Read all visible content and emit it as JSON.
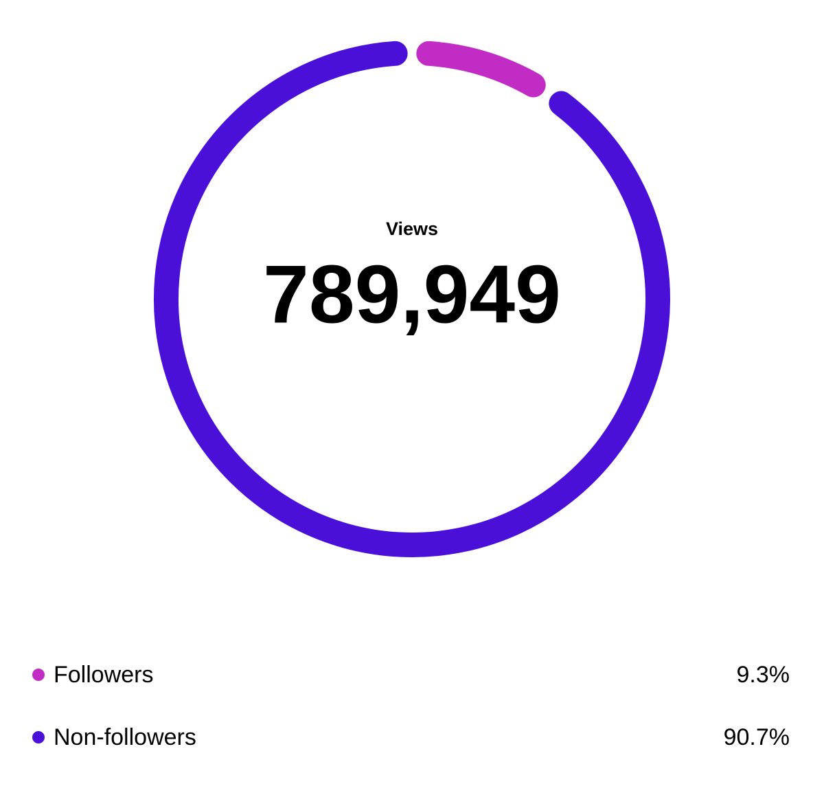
{
  "chart_data": {
    "type": "donut",
    "center_title": "Views",
    "center_value": "789,949",
    "categories": [
      "Followers",
      "Non-followers"
    ],
    "values": [
      9.3,
      90.7
    ],
    "value_labels": [
      "9.3%",
      "90.7%"
    ],
    "colors": [
      "#c12cc5",
      "#4b10d8"
    ]
  }
}
